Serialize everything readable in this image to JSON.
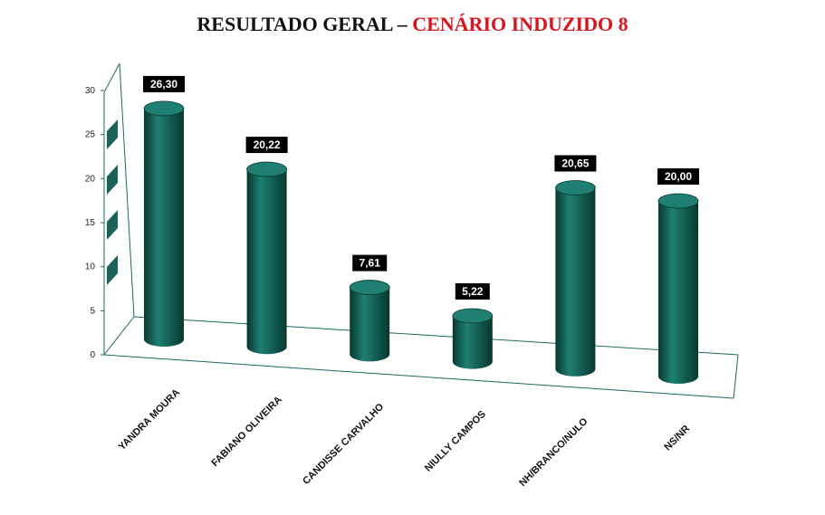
{
  "title": {
    "prefix": "RESULTADO GERAL – ",
    "highlight": "CENÁRIO INDUZIDO 8"
  },
  "colors": {
    "bar": "#0d5b52",
    "bar_light": "#1e7f72",
    "bar_dark": "#07382f",
    "axis": "#1b6b62",
    "label_bg": "#000000",
    "title_accent": "#d9141b"
  },
  "chart_data": {
    "type": "bar",
    "title": "RESULTADO GERAL – CENÁRIO INDUZIDO 8",
    "categories": [
      "YANDRA MOURA",
      "FABIANO OLIVEIRA",
      "CANDISSE CARVALHO",
      "NIULLY CAMPOS",
      "NH/BRANCO/NULO",
      "NS/NR"
    ],
    "values": [
      26.3,
      20.22,
      7.61,
      5.22,
      20.65,
      20.0
    ],
    "value_labels": [
      "26,30",
      "20,22",
      "7,61",
      "5,22",
      "20,65",
      "20,00"
    ],
    "y_ticks": [
      "0",
      "5",
      "10",
      "15",
      "20",
      "25",
      "30"
    ],
    "ylim": [
      0,
      30
    ],
    "xlabel": "",
    "ylabel": "",
    "grid": false,
    "style": "3d-cylinder"
  }
}
